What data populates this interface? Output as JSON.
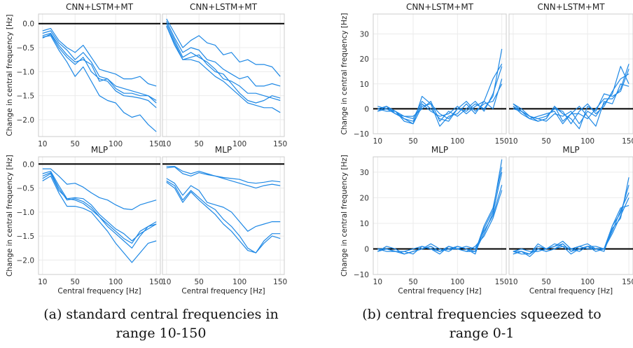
{
  "colors": {
    "series": "#1e88e5",
    "zero_line": "#000000",
    "frame": "#cccccc",
    "grid": "#ebebeb"
  },
  "captions": {
    "a": [
      "(a) standard central frequencies in",
      "range 10-150"
    ],
    "b": [
      "(b) central frequencies squeezed to",
      "range 0-1"
    ]
  },
  "chart_data": [
    {
      "type": "line",
      "title": "CNN+LSTM+MT",
      "group": "a",
      "xlabel": "",
      "ylabel": "Change in central frequency [Hz]",
      "xlim": [
        5,
        155
      ],
      "ylim": [
        -2.35,
        0.2
      ],
      "xticks": [
        10,
        50,
        100,
        150
      ],
      "yticks": [
        0.0,
        -0.5,
        -1.0,
        -1.5,
        -2.0
      ],
      "ytick_labels": [
        "0.0",
        "−0.5",
        "−1.0",
        "−1.5",
        "−2.0"
      ],
      "x": [
        10,
        20,
        30,
        40,
        50,
        60,
        70,
        80,
        90,
        100,
        110,
        120,
        130,
        140,
        150
      ],
      "series": [
        {
          "values": [
            -0.15,
            -0.1,
            -0.35,
            -0.5,
            -0.6,
            -0.45,
            -0.7,
            -0.95,
            -1.0,
            -1.05,
            -1.15,
            -1.15,
            -1.1,
            -1.25,
            -1.3
          ]
        },
        {
          "values": [
            -0.2,
            -0.15,
            -0.4,
            -0.55,
            -0.75,
            -0.6,
            -0.8,
            -1.1,
            -1.15,
            -1.3,
            -1.35,
            -1.4,
            -1.45,
            -1.5,
            -1.6
          ]
        },
        {
          "values": [
            -0.25,
            -0.2,
            -0.45,
            -0.65,
            -0.8,
            -0.75,
            -0.85,
            -1.2,
            -1.15,
            -1.35,
            -1.45,
            -1.45,
            -1.5,
            -1.5,
            -1.65
          ]
        },
        {
          "values": [
            -0.3,
            -0.22,
            -0.5,
            -0.7,
            -0.85,
            -0.7,
            -1.0,
            -1.15,
            -1.2,
            -1.4,
            -1.5,
            -1.52,
            -1.55,
            -1.6,
            -1.75
          ]
        },
        {
          "values": [
            -0.28,
            -0.25,
            -0.55,
            -0.8,
            -1.1,
            -0.9,
            -1.2,
            -1.5,
            -1.6,
            -1.65,
            -1.85,
            -1.95,
            -1.9,
            -2.1,
            -2.25
          ]
        }
      ]
    },
    {
      "type": "line",
      "title": "CNN+LSTM+MT",
      "group": "a",
      "xlabel": "",
      "ylabel": "",
      "xlim": [
        5,
        155
      ],
      "ylim": [
        -2.35,
        0.2
      ],
      "xticks": [
        10,
        50,
        100,
        150
      ],
      "yticks": [
        0.0,
        -0.5,
        -1.0,
        -1.5,
        -2.0
      ],
      "ytick_labels": [],
      "x": [
        10,
        20,
        30,
        40,
        50,
        60,
        70,
        80,
        90,
        100,
        110,
        120,
        130,
        140,
        150
      ],
      "series": [
        {
          "values": [
            0.1,
            -0.2,
            -0.5,
            -0.35,
            -0.25,
            -0.4,
            -0.45,
            -0.65,
            -0.6,
            -0.8,
            -0.75,
            -0.85,
            -0.85,
            -0.9,
            -1.1
          ]
        },
        {
          "values": [
            0.05,
            -0.3,
            -0.6,
            -0.5,
            -0.55,
            -0.75,
            -0.8,
            -0.95,
            -1.05,
            -1.15,
            -1.1,
            -1.3,
            -1.3,
            -1.25,
            -1.3
          ]
        },
        {
          "values": [
            0.0,
            -0.35,
            -0.7,
            -0.6,
            -0.7,
            -0.8,
            -0.95,
            -1.15,
            -1.2,
            -1.3,
            -1.45,
            -1.45,
            -1.5,
            -1.55,
            -1.6
          ]
        },
        {
          "values": [
            -0.05,
            -0.4,
            -0.75,
            -0.7,
            -0.65,
            -0.85,
            -1.0,
            -1.05,
            -1.25,
            -1.45,
            -1.6,
            -1.65,
            -1.6,
            -1.5,
            -1.55
          ]
        },
        {
          "values": [
            -0.05,
            -0.45,
            -0.75,
            -0.75,
            -0.8,
            -0.95,
            -1.1,
            -1.2,
            -1.35,
            -1.5,
            -1.65,
            -1.7,
            -1.75,
            -1.75,
            -1.85
          ]
        }
      ]
    },
    {
      "type": "line",
      "title": "CNN+LSTM+MT",
      "group": "b",
      "xlabel": "",
      "ylabel": "Change in central frequency [Hz]",
      "xlim": [
        5,
        155
      ],
      "ylim": [
        -10,
        38
      ],
      "xticks": [
        10,
        50,
        100,
        150
      ],
      "yticks": [
        -10,
        0,
        10,
        20,
        30
      ],
      "ytick_labels": [
        "−10",
        "0",
        "10",
        "20",
        "30"
      ],
      "x": [
        10,
        20,
        30,
        40,
        50,
        60,
        70,
        80,
        90,
        100,
        110,
        120,
        130,
        140,
        150
      ],
      "series": [
        {
          "values": [
            -1,
            0,
            -2,
            -4,
            -6,
            5,
            2,
            -7,
            -3,
            -2,
            2,
            -2,
            3,
            12,
            18
          ]
        },
        {
          "values": [
            0,
            1,
            -1,
            -3,
            -4,
            3,
            0,
            -4,
            -5,
            0,
            -1,
            2,
            0,
            5,
            24
          ]
        },
        {
          "values": [
            1,
            0,
            -1,
            -4,
            -5,
            2,
            -1,
            -3,
            -2,
            1,
            -2,
            1,
            3,
            0,
            12
          ]
        },
        {
          "values": [
            -1,
            1,
            -2,
            -3,
            -3,
            0,
            3,
            -5,
            -1,
            -3,
            0,
            3,
            -1,
            6,
            17
          ]
        },
        {
          "values": [
            0,
            -1,
            -1,
            -5,
            -6,
            1,
            2,
            -2,
            -4,
            0,
            3,
            -1,
            2,
            3,
            10
          ]
        }
      ]
    },
    {
      "type": "line",
      "title": "CNN+LSTM+MT",
      "group": "b",
      "xlabel": "",
      "ylabel": "",
      "xlim": [
        5,
        155
      ],
      "ylim": [
        -10,
        38
      ],
      "xticks": [
        10,
        50,
        100,
        150
      ],
      "yticks": [
        -10,
        0,
        10,
        20,
        30
      ],
      "ytick_labels": [],
      "x": [
        10,
        20,
        30,
        40,
        50,
        60,
        70,
        80,
        90,
        100,
        110,
        120,
        130,
        140,
        150
      ],
      "series": [
        {
          "values": [
            2,
            -1,
            -3,
            -4,
            -5,
            -2,
            -3,
            -1,
            -6,
            -1,
            -3,
            2,
            6,
            17,
            10
          ]
        },
        {
          "values": [
            1,
            -2,
            -4,
            -5,
            -4,
            1,
            -5,
            -2,
            -2,
            -4,
            0,
            4,
            4,
            8,
            18
          ]
        },
        {
          "values": [
            0,
            -1,
            -3,
            -4,
            -3,
            0,
            -1,
            -6,
            -1,
            2,
            -2,
            1,
            7,
            12,
            14
          ]
        },
        {
          "values": [
            1,
            -1,
            -4,
            -3,
            -2,
            -1,
            -6,
            -2,
            1,
            -3,
            -7,
            3,
            2,
            10,
            9
          ]
        },
        {
          "values": [
            2,
            0,
            -3,
            -5,
            -4,
            1,
            -2,
            -4,
            -8,
            1,
            -1,
            6,
            5,
            7,
            16
          ]
        }
      ]
    },
    {
      "type": "line",
      "title": "MLP",
      "group": "a",
      "xlabel": "Central frequency [Hz]",
      "ylabel": "Change in central frequency [Hz]",
      "xlim": [
        5,
        155
      ],
      "ylim": [
        -2.3,
        0.15
      ],
      "xticks": [
        10,
        50,
        100,
        150
      ],
      "yticks": [
        0.0,
        -0.5,
        -1.0,
        -1.5,
        -2.0
      ],
      "ytick_labels": [
        "0.0",
        "−0.5",
        "−1.0",
        "−1.5",
        "−2.0"
      ],
      "x": [
        10,
        20,
        30,
        40,
        50,
        60,
        70,
        80,
        90,
        100,
        110,
        120,
        130,
        140,
        150
      ],
      "series": [
        {
          "values": [
            -0.1,
            -0.1,
            -0.25,
            -0.42,
            -0.4,
            -0.48,
            -0.6,
            -0.7,
            -0.75,
            -0.85,
            -0.93,
            -0.95,
            -0.85,
            -0.8,
            -0.75
          ]
        },
        {
          "values": [
            -0.2,
            -0.15,
            -0.45,
            -0.72,
            -0.7,
            -0.72,
            -0.85,
            -1.05,
            -1.2,
            -1.35,
            -1.45,
            -1.6,
            -1.45,
            -1.35,
            -1.25
          ]
        },
        {
          "values": [
            -0.25,
            -0.18,
            -0.5,
            -0.75,
            -0.72,
            -0.78,
            -0.9,
            -1.1,
            -1.25,
            -1.4,
            -1.55,
            -1.65,
            -1.4,
            -1.3,
            -1.2
          ]
        },
        {
          "values": [
            -0.3,
            -0.2,
            -0.55,
            -0.72,
            -0.75,
            -0.82,
            -0.95,
            -1.1,
            -1.3,
            -1.45,
            -1.6,
            -1.75,
            -1.5,
            -1.3,
            -1.25
          ]
        },
        {
          "values": [
            -0.35,
            -0.25,
            -0.6,
            -0.88,
            -0.88,
            -0.92,
            -1.0,
            -1.2,
            -1.4,
            -1.65,
            -1.85,
            -2.05,
            -1.85,
            -1.65,
            -1.6
          ]
        }
      ]
    },
    {
      "type": "line",
      "title": "MLP",
      "group": "a",
      "xlabel": "Central frequency [Hz]",
      "ylabel": "",
      "xlim": [
        5,
        155
      ],
      "ylim": [
        -2.3,
        0.15
      ],
      "xticks": [
        10,
        50,
        100,
        150
      ],
      "yticks": [
        0.0,
        -0.5,
        -1.0,
        -1.5,
        -2.0
      ],
      "ytick_labels": [],
      "x": [
        10,
        20,
        30,
        40,
        50,
        60,
        70,
        80,
        90,
        100,
        110,
        120,
        130,
        140,
        150
      ],
      "series": [
        {
          "values": [
            -0.05,
            -0.05,
            -0.15,
            -0.2,
            -0.15,
            -0.2,
            -0.25,
            -0.3,
            -0.35,
            -0.4,
            -0.45,
            -0.5,
            -0.45,
            -0.42,
            -0.45
          ]
        },
        {
          "values": [
            -0.08,
            -0.06,
            -0.2,
            -0.25,
            -0.18,
            -0.22,
            -0.25,
            -0.28,
            -0.3,
            -0.32,
            -0.38,
            -0.4,
            -0.38,
            -0.35,
            -0.37
          ]
        },
        {
          "values": [
            -0.3,
            -0.4,
            -0.65,
            -0.45,
            -0.55,
            -0.8,
            -0.85,
            -0.9,
            -1.0,
            -1.2,
            -1.4,
            -1.3,
            -1.25,
            -1.2,
            -1.2
          ]
        },
        {
          "values": [
            -0.35,
            -0.45,
            -0.75,
            -0.55,
            -0.7,
            -0.85,
            -0.95,
            -1.15,
            -1.3,
            -1.5,
            -1.75,
            -1.85,
            -1.6,
            -1.45,
            -1.45
          ]
        },
        {
          "values": [
            -0.38,
            -0.5,
            -0.8,
            -0.58,
            -0.75,
            -0.9,
            -1.05,
            -1.25,
            -1.4,
            -1.6,
            -1.8,
            -1.85,
            -1.65,
            -1.5,
            -1.55
          ]
        }
      ]
    },
    {
      "type": "line",
      "title": "MLP",
      "group": "b",
      "xlabel": "Central frequency [Hz]",
      "ylabel": "Change in central frequency [Hz]",
      "xlim": [
        5,
        155
      ],
      "ylim": [
        -10,
        36
      ],
      "xticks": [
        10,
        50,
        100,
        150
      ],
      "yticks": [
        -10,
        0,
        10,
        20,
        30
      ],
      "ytick_labels": [
        "−10",
        "0",
        "10",
        "20",
        "30"
      ],
      "x": [
        10,
        20,
        30,
        40,
        50,
        60,
        70,
        80,
        90,
        100,
        110,
        120,
        130,
        140,
        150
      ],
      "series": [
        {
          "values": [
            -1,
            0,
            -1,
            -2,
            -1,
            0,
            1,
            -1,
            0,
            1,
            0,
            -2,
            8,
            15,
            35
          ]
        },
        {
          "values": [
            0,
            0,
            -1,
            -1,
            -2,
            1,
            0,
            -2,
            1,
            0,
            -1,
            -1,
            6,
            14,
            30
          ]
        },
        {
          "values": [
            -1,
            1,
            0,
            -2,
            -1,
            0,
            2,
            0,
            -1,
            1,
            0,
            -1,
            9,
            16,
            32
          ]
        },
        {
          "values": [
            0,
            -1,
            -1,
            -1,
            0,
            1,
            0,
            -1,
            0,
            0,
            1,
            0,
            7,
            13,
            25
          ]
        },
        {
          "values": [
            -1,
            0,
            -1,
            -2,
            -1,
            0,
            1,
            -1,
            1,
            0,
            -1,
            1,
            5,
            12,
            23
          ]
        }
      ]
    },
    {
      "type": "line",
      "title": "MLP",
      "group": "b",
      "xlabel": "Central frequency [Hz]",
      "ylabel": "",
      "xlim": [
        5,
        155
      ],
      "ylim": [
        -10,
        36
      ],
      "xticks": [
        10,
        50,
        100,
        150
      ],
      "yticks": [
        -10,
        0,
        10,
        20,
        30
      ],
      "ytick_labels": [],
      "x": [
        10,
        20,
        30,
        40,
        50,
        60,
        70,
        80,
        90,
        100,
        110,
        120,
        130,
        140,
        150
      ],
      "series": [
        {
          "values": [
            -1,
            -1,
            -2,
            0,
            -1,
            0,
            2,
            -1,
            0,
            1,
            0,
            -1,
            8,
            12,
            28
          ]
        },
        {
          "values": [
            -2,
            -1,
            -2,
            2,
            0,
            1,
            3,
            0,
            -1,
            1,
            1,
            0,
            9,
            14,
            25
          ]
        },
        {
          "values": [
            -1,
            0,
            -1,
            -1,
            0,
            2,
            1,
            0,
            1,
            2,
            0,
            0,
            7,
            15,
            22
          ]
        },
        {
          "values": [
            -2,
            -1,
            -3,
            0,
            -1,
            0,
            1,
            -2,
            0,
            1,
            -1,
            0,
            6,
            13,
            20
          ]
        },
        {
          "values": [
            -1,
            -2,
            -2,
            1,
            0,
            1,
            2,
            -1,
            1,
            0,
            0,
            0,
            9,
            16,
            17
          ]
        }
      ]
    }
  ]
}
